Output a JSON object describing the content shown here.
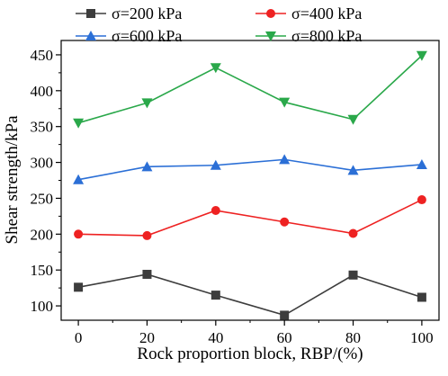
{
  "chart_data": {
    "type": "line",
    "title": "",
    "xlabel": "Rock proportion block, RBP/(%)",
    "ylabel": "Shear strength/kPa",
    "x": [
      0,
      20,
      40,
      60,
      80,
      100
    ],
    "xlim": [
      -5,
      105
    ],
    "ylim": [
      80,
      470
    ],
    "xticks": [
      0,
      20,
      40,
      60,
      80,
      100
    ],
    "yticks": [
      100,
      150,
      200,
      250,
      300,
      350,
      400,
      450
    ],
    "grid": false,
    "legend_position": "top",
    "series": [
      {
        "name": "σ=200 kPa",
        "color": "#3d3d3d",
        "marker": "square",
        "values": [
          126,
          144,
          115,
          87,
          143,
          112
        ]
      },
      {
        "name": "σ=400 kPa",
        "color": "#ee2222",
        "marker": "circle",
        "values": [
          200,
          198,
          233,
          217,
          201,
          248
        ]
      },
      {
        "name": "σ=600 kPa",
        "color": "#2b6fd6",
        "marker": "triangle-up",
        "values": [
          276,
          294,
          296,
          304,
          289,
          297
        ]
      },
      {
        "name": "σ=800 kPa",
        "color": "#2aa84a",
        "marker": "triangle-down",
        "values": [
          355,
          383,
          432,
          384,
          360,
          449
        ]
      }
    ]
  }
}
